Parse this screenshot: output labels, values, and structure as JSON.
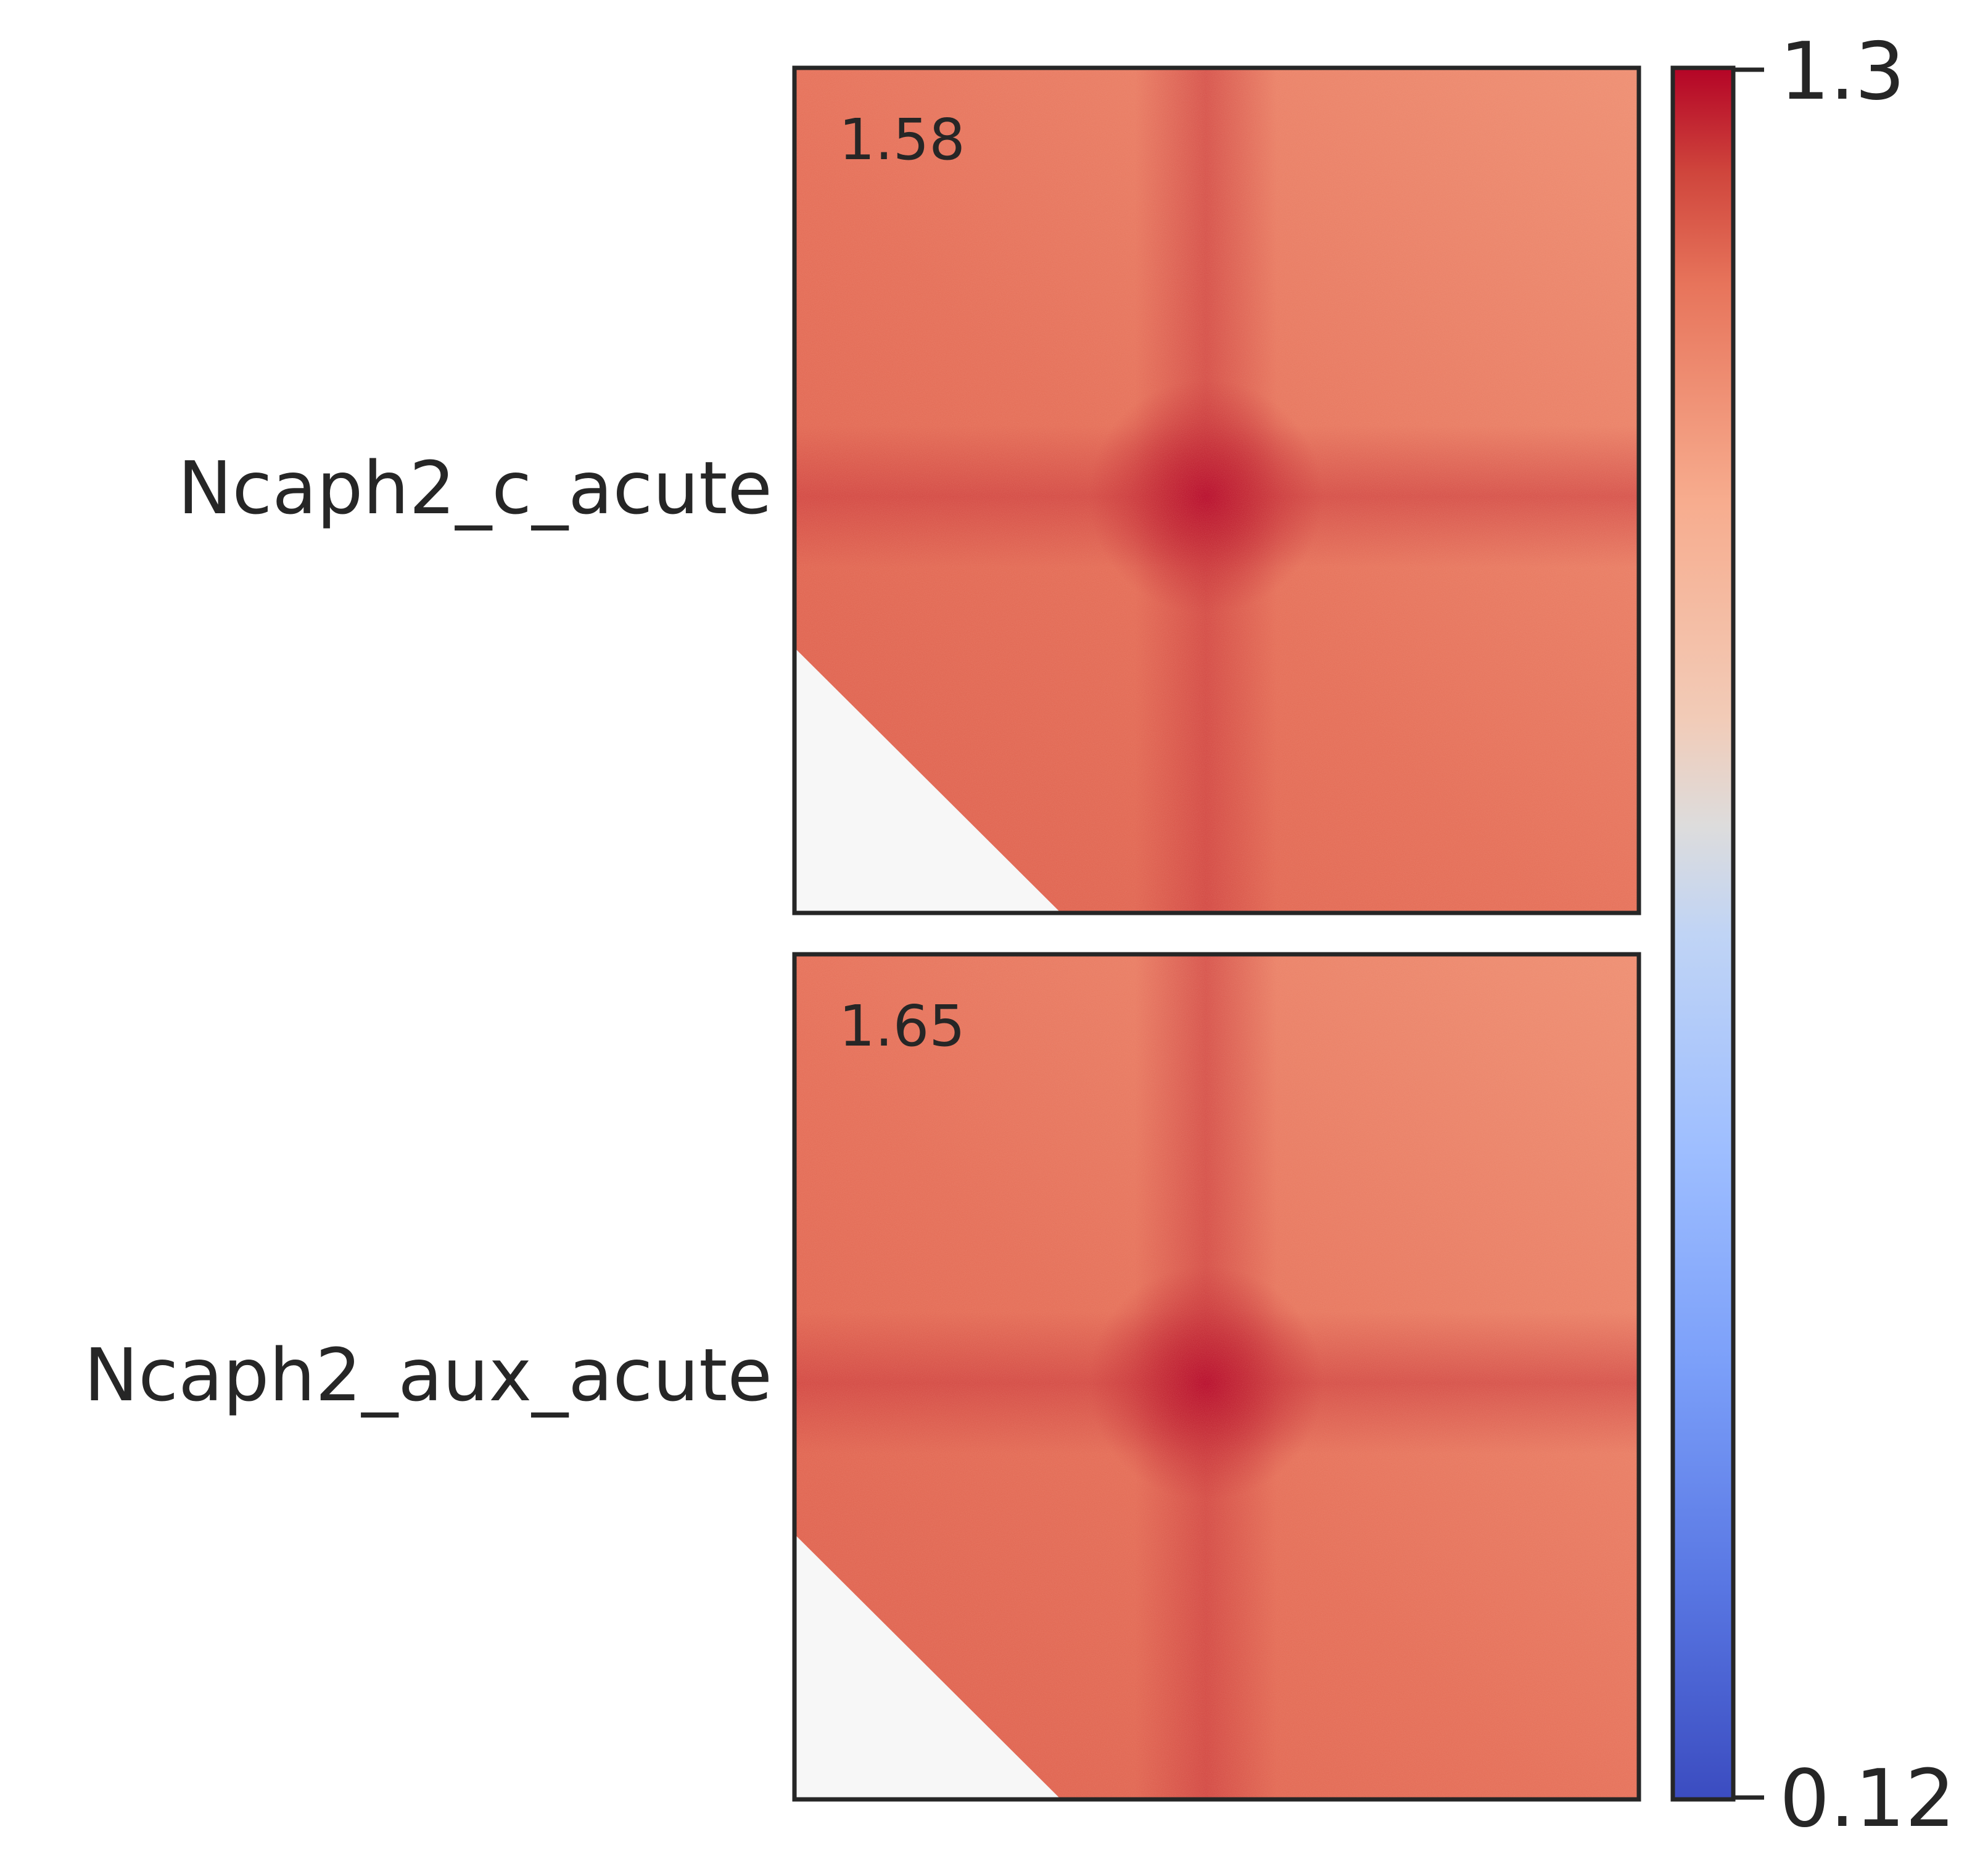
{
  "chart_data": {
    "type": "heatmap",
    "panels": [
      {
        "row_label": "Ncaph2_c_acute",
        "corner_value": "1.58"
      },
      {
        "row_label": "Ncaph2_aux_acute",
        "corner_value": "1.65"
      }
    ],
    "colorbar": {
      "colormap": "coolwarm",
      "min_label": "0.12",
      "max_label": "1.3",
      "range": [
        0.12,
        1.3
      ]
    },
    "colors": {
      "peak": "#b40426",
      "high": "#d75445",
      "background": "#e8775e",
      "masked": "#f7f7f7",
      "frame": "#262626"
    }
  }
}
